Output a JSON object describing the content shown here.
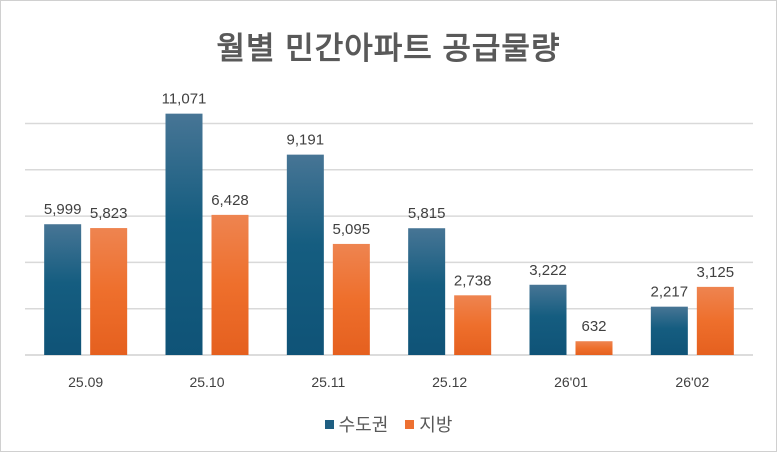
{
  "chart_data": {
    "type": "bar",
    "title": "월별 민간아파트 공급물량",
    "categories": [
      "25.09",
      "25.10",
      "25.11",
      "25.12",
      "26'01",
      "26'02"
    ],
    "series": [
      {
        "name": "수도권",
        "values": [
          5999,
          11071,
          9191,
          5815,
          3222,
          2217
        ],
        "labels": [
          "5,999",
          "11,071",
          "9,191",
          "5,815",
          "3,222",
          "2,217"
        ],
        "color": "#1f5f82"
      },
      {
        "name": "지방",
        "values": [
          5823,
          6428,
          5095,
          2738,
          632,
          3125
        ],
        "labels": [
          "5,823",
          "6,428",
          "5,095",
          "2,738",
          "632",
          "3,125"
        ],
        "color": "#ed7031"
      }
    ],
    "ylim": [
      0,
      12000
    ],
    "ygrid_step": 2000,
    "grid": true,
    "y_tick_labels_shown": false,
    "legend": "bottom"
  }
}
